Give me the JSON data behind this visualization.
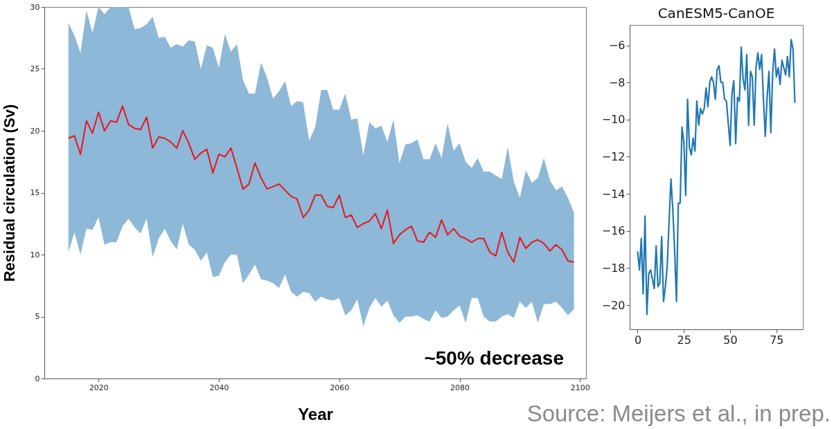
{
  "chart_data": [
    {
      "type": "line",
      "xlabel": "Year",
      "ylabel": "Residual circulation (Sv)",
      "xlim": [
        2011,
        2101
      ],
      "ylim": [
        0,
        30
      ],
      "xticks": [
        2020,
        2040,
        2060,
        2080,
        2100
      ],
      "yticks": [
        0,
        5,
        10,
        15,
        20,
        25,
        30
      ],
      "x": [
        2015,
        2016,
        2017,
        2018,
        2019,
        2020,
        2021,
        2022,
        2023,
        2024,
        2025,
        2026,
        2027,
        2028,
        2029,
        2030,
        2031,
        2032,
        2033,
        2034,
        2035,
        2036,
        2037,
        2038,
        2039,
        2040,
        2041,
        2042,
        2043,
        2044,
        2045,
        2046,
        2047,
        2048,
        2049,
        2050,
        2051,
        2052,
        2053,
        2054,
        2055,
        2056,
        2057,
        2058,
        2059,
        2060,
        2061,
        2062,
        2063,
        2064,
        2065,
        2066,
        2067,
        2068,
        2069,
        2070,
        2071,
        2072,
        2073,
        2074,
        2075,
        2076,
        2077,
        2078,
        2079,
        2080,
        2081,
        2082,
        2083,
        2084,
        2085,
        2086,
        2087,
        2088,
        2089,
        2090,
        2091,
        2092,
        2093,
        2094,
        2095,
        2096,
        2097,
        2098,
        2099
      ],
      "series": [
        {
          "color": "#e8141c",
          "values": [
            19.4,
            19.6,
            18.1,
            20.8,
            19.8,
            21.5,
            20.0,
            20.8,
            20.7,
            22.0,
            20.5,
            20.2,
            20.1,
            21.1,
            18.6,
            19.5,
            19.4,
            19.1,
            18.6,
            20.0,
            19.0,
            17.7,
            18.2,
            18.5,
            16.6,
            18.1,
            17.9,
            18.6,
            17.0,
            15.3,
            15.7,
            17.4,
            16.2,
            15.3,
            15.5,
            15.7,
            15.2,
            14.7,
            14.5,
            13.0,
            13.6,
            14.8,
            14.8,
            13.9,
            13.8,
            14.8,
            13.0,
            13.2,
            12.2,
            12.5,
            12.7,
            13.3,
            12.1,
            13.6,
            10.9,
            11.6,
            12.0,
            12.3,
            11.1,
            11.0,
            11.8,
            11.4,
            12.8,
            11.6,
            12.1,
            11.5,
            11.3,
            11.0,
            11.3,
            11.3,
            10.2,
            9.9,
            11.8,
            10.2,
            9.4,
            11.4,
            10.5,
            11.0,
            11.2,
            10.9,
            10.3,
            10.8,
            10.4,
            9.5,
            9.4
          ],
          "lower": [
            10.2,
            11.8,
            10.0,
            12.1,
            12.0,
            13.0,
            10.8,
            11.0,
            11.0,
            12.3,
            12.9,
            12.2,
            11.7,
            12.9,
            9.8,
            11.3,
            12.1,
            11.1,
            10.4,
            12.5,
            10.8,
            10.4,
            9.5,
            10.2,
            8.2,
            8.3,
            9.4,
            10.0,
            10.0,
            7.7,
            8.4,
            9.2,
            8.0,
            7.9,
            7.7,
            7.3,
            8.4,
            7.0,
            6.6,
            7.0,
            6.9,
            6.2,
            6.6,
            6.4,
            6.3,
            6.5,
            5.1,
            5.5,
            6.4,
            4.2,
            5.7,
            6.5,
            5.8,
            6.3,
            5.1,
            4.5,
            5.0,
            5.0,
            5.1,
            4.8,
            4.6,
            5.5,
            4.9,
            5.0,
            5.5,
            5.9,
            4.5,
            6.5,
            6.5,
            5.0,
            4.6,
            4.6,
            5.0,
            5.2,
            4.9,
            6.2,
            5.7,
            6.2,
            4.5,
            6.0,
            6.0,
            6.2,
            5.7,
            5.1,
            5.6
          ],
          "upper": [
            28.7,
            27.7,
            26.3,
            29.7,
            27.9,
            30.0,
            29.4,
            30.0,
            30.0,
            30.0,
            30.0,
            28.2,
            28.3,
            28.6,
            29.2,
            27.5,
            27.6,
            26.7,
            27.0,
            26.8,
            27.3,
            27.2,
            25.0,
            26.9,
            26.7,
            25.1,
            27.8,
            26.4,
            27.0,
            24.1,
            23.0,
            23.0,
            25.5,
            24.3,
            22.6,
            23.2,
            24.0,
            22.0,
            22.4,
            22.3,
            19.2,
            20.3,
            23.3,
            23.3,
            21.7,
            21.7,
            23.0,
            20.9,
            21.0,
            18.0,
            20.7,
            20.2,
            20.4,
            19.1,
            20.9,
            17.4,
            18.9,
            19.0,
            19.3,
            17.7,
            17.7,
            19.0,
            17.8,
            20.6,
            18.4,
            19.0,
            17.5,
            17.0,
            17.8,
            16.7,
            16.7,
            16.4,
            16.1,
            18.7,
            15.9,
            14.6,
            16.8,
            15.8,
            16.2,
            17.8,
            16.0,
            15.2,
            15.5,
            14.6,
            13.4
          ]
        }
      ],
      "annotations": [
        "~50% decrease",
        "Source: Meijers et al., in prep."
      ]
    },
    {
      "type": "line",
      "title": "CanESM5-CanOE",
      "xlim": [
        -4.3,
        89.3
      ],
      "ylim": [
        -21.3,
        -4.9
      ],
      "xticks": [
        0,
        25,
        50,
        75
      ],
      "yticks": [
        -20,
        -18,
        -16,
        -14,
        -12,
        -10,
        -8,
        -6
      ],
      "x": [
        0,
        1,
        2,
        3,
        4,
        5,
        6,
        7,
        8,
        9,
        10,
        11,
        12,
        13,
        14,
        15,
        16,
        17,
        18,
        19,
        20,
        21,
        22,
        23,
        24,
        25,
        26,
        27,
        28,
        29,
        30,
        31,
        32,
        33,
        34,
        35,
        36,
        37,
        38,
        39,
        40,
        41,
        42,
        43,
        44,
        45,
        46,
        47,
        48,
        49,
        50,
        51,
        52,
        53,
        54,
        55,
        56,
        57,
        58,
        59,
        60,
        61,
        62,
        63,
        64,
        65,
        66,
        67,
        68,
        69,
        70,
        71,
        72,
        73,
        74,
        75,
        76,
        77,
        78,
        79,
        80,
        81,
        82,
        83,
        84,
        85
      ],
      "series": [
        {
          "color": "#1f77b4",
          "values": [
            -17.1,
            -18.1,
            -16.4,
            -19.4,
            -15.2,
            -20.5,
            -18.3,
            -18.1,
            -18.6,
            -19.1,
            -16.8,
            -19.0,
            -18.8,
            -16.3,
            -19.8,
            -19.0,
            -17.9,
            -15.5,
            -13.2,
            -14.8,
            -17.0,
            -19.8,
            -14.5,
            -14.5,
            -10.4,
            -11.2,
            -14.1,
            -8.9,
            -11.5,
            -11.9,
            -11.0,
            -11.7,
            -9.0,
            -10.3,
            -9.4,
            -9.7,
            -9.4,
            -8.3,
            -9.3,
            -8.0,
            -7.7,
            -8.0,
            -8.9,
            -7.3,
            -7.1,
            -8.0,
            -8.0,
            -8.9,
            -9.0,
            -10.2,
            -11.4,
            -8.6,
            -7.9,
            -11.3,
            -8.8,
            -9.0,
            -6.1,
            -7.8,
            -8.4,
            -6.5,
            -10.3,
            -7.4,
            -7.7,
            -10.3,
            -7.2,
            -6.4,
            -7.3,
            -6.5,
            -8.9,
            -10.9,
            -8.8,
            -7.4,
            -10.7,
            -7.5,
            -6.2,
            -7.7,
            -7.2,
            -8.1,
            -6.8,
            -7.2,
            -7.6,
            -6.6,
            -7.7,
            -5.7,
            -6.2,
            -9.1
          ]
        }
      ]
    }
  ]
}
